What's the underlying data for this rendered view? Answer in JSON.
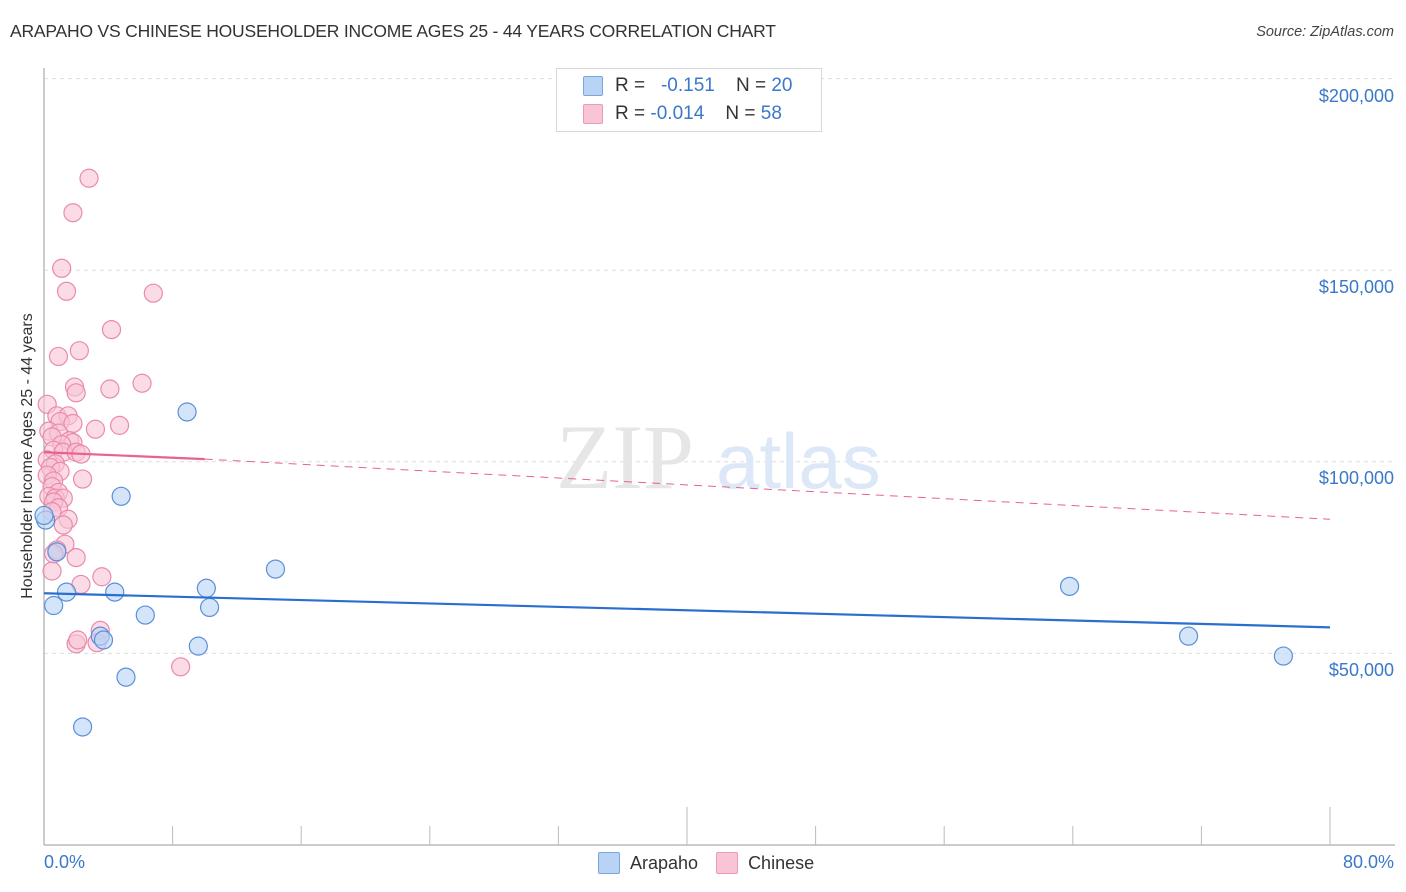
{
  "header": {
    "title": "ARAPAHO VS CHINESE HOUSEHOLDER INCOME AGES 25 - 44 YEARS CORRELATION CHART",
    "source": "Source: ZipAtlas.com"
  },
  "legend_top": {
    "rows": [
      {
        "series": "Arapaho",
        "r_label": "R =",
        "r_value": "-0.151",
        "n_label": "N =",
        "n_value": "20"
      },
      {
        "series": "Chinese",
        "r_label": "R =",
        "r_value": "-0.014",
        "n_label": "N =",
        "n_value": "58"
      }
    ]
  },
  "legend_bottom": {
    "items": [
      {
        "label": "Arapaho"
      },
      {
        "label": "Chinese"
      }
    ]
  },
  "colors": {
    "arapaho_fill": "#b9d3f5",
    "arapaho_stroke": "#5b8fd9",
    "arapaho_line": "#2a6fce",
    "chinese_fill": "#f9c4d5",
    "chinese_stroke": "#ea8aab",
    "chinese_line": "#e8628f",
    "axis_text": "#3a78c9",
    "grid": "#dddddd"
  },
  "watermark": {
    "zip": "ZIP",
    "atlas": "atlas"
  },
  "chart_data": {
    "type": "scatter",
    "title": "ARAPAHO VS CHINESE HOUSEHOLDER INCOME AGES 25 - 44 YEARS CORRELATION CHART",
    "xlabel": "",
    "ylabel": "Householder Income Ages 25 - 44 years",
    "xlim": [
      0,
      80
    ],
    "ylim": [
      0,
      210000
    ],
    "x_tick_labels": [
      "0.0%",
      "80.0%"
    ],
    "y_ticks": [
      50000,
      100000,
      150000,
      200000
    ],
    "y_tick_labels": [
      "$50,000",
      "$100,000",
      "$150,000",
      "$200,000"
    ],
    "grid": "horizontal dashed",
    "legend_position": "top-center and bottom-center",
    "series": [
      {
        "name": "Arapaho",
        "r": -0.151,
        "n": 20,
        "points": [
          [
            8.9,
            113000
          ],
          [
            4.8,
            91000
          ],
          [
            14.4,
            72000
          ],
          [
            63.8,
            67500
          ],
          [
            10.1,
            67000
          ],
          [
            4.4,
            66000
          ],
          [
            1.4,
            66000
          ],
          [
            10.3,
            62000
          ],
          [
            0.6,
            62500
          ],
          [
            6.3,
            60000
          ],
          [
            3.5,
            54500
          ],
          [
            71.2,
            54500
          ],
          [
            3.7,
            53500
          ],
          [
            9.6,
            51900
          ],
          [
            5.1,
            43800
          ],
          [
            77.1,
            49300
          ],
          [
            2.4,
            30800
          ],
          [
            0.1,
            84800
          ],
          [
            0.8,
            76500
          ],
          [
            0.0,
            86000
          ]
        ],
        "trend": {
          "x": [
            0,
            80
          ],
          "y": [
            65700,
            56800
          ],
          "style": "solid"
        }
      },
      {
        "name": "Chinese",
        "r": -0.014,
        "n": 58,
        "points": [
          [
            2.8,
            174000
          ],
          [
            1.8,
            165000
          ],
          [
            1.1,
            150500
          ],
          [
            1.4,
            144500
          ],
          [
            6.8,
            144000
          ],
          [
            4.2,
            134500
          ],
          [
            2.2,
            129000
          ],
          [
            0.9,
            127500
          ],
          [
            6.1,
            120500
          ],
          [
            1.9,
            119500
          ],
          [
            4.1,
            119000
          ],
          [
            2.0,
            118000
          ],
          [
            0.2,
            115000
          ],
          [
            0.8,
            112000
          ],
          [
            1.5,
            112000
          ],
          [
            1.0,
            110500
          ],
          [
            1.8,
            110000
          ],
          [
            4.7,
            109500
          ],
          [
            3.2,
            108500
          ],
          [
            0.3,
            108000
          ],
          [
            0.9,
            107500
          ],
          [
            0.5,
            106500
          ],
          [
            1.6,
            105500
          ],
          [
            1.8,
            105000
          ],
          [
            1.1,
            104500
          ],
          [
            0.6,
            103000
          ],
          [
            1.2,
            102500
          ],
          [
            2.0,
            102500
          ],
          [
            2.3,
            102000
          ],
          [
            0.2,
            100500
          ],
          [
            0.7,
            99500
          ],
          [
            0.4,
            98500
          ],
          [
            1.0,
            97500
          ],
          [
            0.2,
            96500
          ],
          [
            2.4,
            95500
          ],
          [
            0.6,
            95000
          ],
          [
            0.5,
            93500
          ],
          [
            0.9,
            92000
          ],
          [
            0.3,
            91000
          ],
          [
            0.7,
            90500
          ],
          [
            1.2,
            90500
          ],
          [
            0.6,
            89500
          ],
          [
            0.9,
            88000
          ],
          [
            0.5,
            87000
          ],
          [
            1.5,
            85000
          ],
          [
            1.2,
            83500
          ],
          [
            1.3,
            78500
          ],
          [
            0.8,
            77000
          ],
          [
            2.0,
            75000
          ],
          [
            0.5,
            71500
          ],
          [
            3.6,
            70000
          ],
          [
            2.3,
            68000
          ],
          [
            3.5,
            56000
          ],
          [
            2.0,
            52500
          ],
          [
            3.3,
            52800
          ],
          [
            2.1,
            53500
          ],
          [
            8.5,
            46500
          ],
          [
            0.6,
            76000
          ]
        ],
        "trend": {
          "x": [
            0,
            10
          ],
          "y": [
            102500,
            100700
          ],
          "style": "solid"
        },
        "trend_extended": {
          "x": [
            10,
            80
          ],
          "y": [
            100700,
            85000
          ],
          "style": "dashed"
        }
      }
    ]
  }
}
